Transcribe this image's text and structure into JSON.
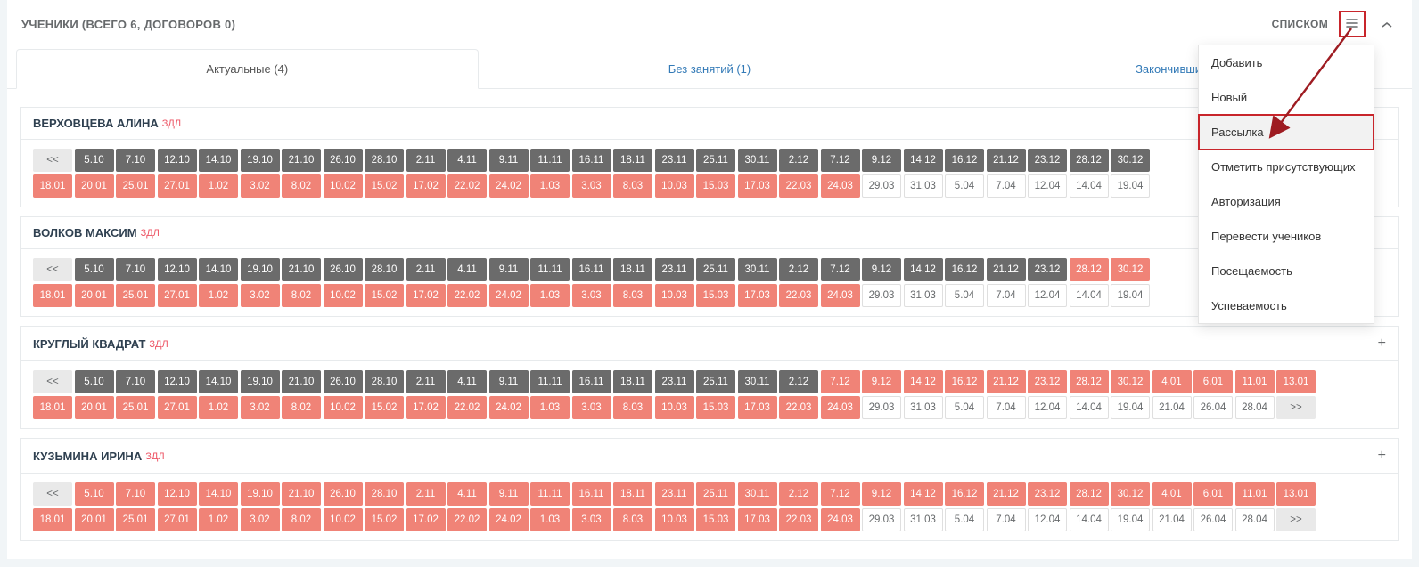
{
  "panel": {
    "title": "УЧЕНИКИ (ВСЕГО 6, ДОГОВОРОВ 0)",
    "list_label": "СПИСКОМ"
  },
  "tabs": [
    {
      "label": "Актуальные (4)",
      "active": true
    },
    {
      "label": "Без занятий (1)",
      "active": false
    },
    {
      "label": "Закончившие",
      "active": false
    }
  ],
  "students": [
    {
      "name": "ВЕРХОВЦЕВА АЛИНА",
      "badge": "ЗДЛ",
      "show_plus": false,
      "rows": [
        [
          {
            "t": "<<",
            "c": "nav"
          },
          {
            "t": "5.10",
            "c": "grey"
          },
          {
            "t": "7.10",
            "c": "grey"
          },
          {
            "t": "12.10",
            "c": "grey"
          },
          {
            "t": "14.10",
            "c": "grey"
          },
          {
            "t": "19.10",
            "c": "grey"
          },
          {
            "t": "21.10",
            "c": "grey"
          },
          {
            "t": "26.10",
            "c": "grey"
          },
          {
            "t": "28.10",
            "c": "grey"
          },
          {
            "t": "2.11",
            "c": "grey"
          },
          {
            "t": "4.11",
            "c": "grey"
          },
          {
            "t": "9.11",
            "c": "grey"
          },
          {
            "t": "11.11",
            "c": "grey"
          },
          {
            "t": "16.11",
            "c": "grey"
          },
          {
            "t": "18.11",
            "c": "grey"
          },
          {
            "t": "23.11",
            "c": "grey"
          },
          {
            "t": "25.11",
            "c": "grey"
          },
          {
            "t": "30.11",
            "c": "grey"
          },
          {
            "t": "2.12",
            "c": "grey"
          },
          {
            "t": "7.12",
            "c": "grey"
          },
          {
            "t": "9.12",
            "c": "grey"
          },
          {
            "t": "14.12",
            "c": "grey"
          },
          {
            "t": "16.12",
            "c": "grey"
          },
          {
            "t": "21.12",
            "c": "grey"
          },
          {
            "t": "23.12",
            "c": "grey"
          },
          {
            "t": "28.12",
            "c": "grey"
          },
          {
            "t": "30.12",
            "c": "grey"
          }
        ],
        [
          {
            "t": "18.01",
            "c": "coral"
          },
          {
            "t": "20.01",
            "c": "coral"
          },
          {
            "t": "25.01",
            "c": "coral"
          },
          {
            "t": "27.01",
            "c": "coral"
          },
          {
            "t": "1.02",
            "c": "coral"
          },
          {
            "t": "3.02",
            "c": "coral"
          },
          {
            "t": "8.02",
            "c": "coral"
          },
          {
            "t": "10.02",
            "c": "coral"
          },
          {
            "t": "15.02",
            "c": "coral"
          },
          {
            "t": "17.02",
            "c": "coral"
          },
          {
            "t": "22.02",
            "c": "coral"
          },
          {
            "t": "24.02",
            "c": "coral"
          },
          {
            "t": "1.03",
            "c": "coral"
          },
          {
            "t": "3.03",
            "c": "coral"
          },
          {
            "t": "8.03",
            "c": "coral"
          },
          {
            "t": "10.03",
            "c": "coral"
          },
          {
            "t": "15.03",
            "c": "coral"
          },
          {
            "t": "17.03",
            "c": "coral"
          },
          {
            "t": "22.03",
            "c": "coral"
          },
          {
            "t": "24.03",
            "c": "coral"
          },
          {
            "t": "29.03",
            "c": "light"
          },
          {
            "t": "31.03",
            "c": "light"
          },
          {
            "t": "5.04",
            "c": "light"
          },
          {
            "t": "7.04",
            "c": "light"
          },
          {
            "t": "12.04",
            "c": "light"
          },
          {
            "t": "14.04",
            "c": "light"
          },
          {
            "t": "19.04",
            "c": "light"
          }
        ]
      ]
    },
    {
      "name": "ВОЛКОВ МАКСИМ",
      "badge": "ЗДЛ",
      "show_plus": false,
      "rows": [
        [
          {
            "t": "<<",
            "c": "nav"
          },
          {
            "t": "5.10",
            "c": "grey"
          },
          {
            "t": "7.10",
            "c": "grey"
          },
          {
            "t": "12.10",
            "c": "grey"
          },
          {
            "t": "14.10",
            "c": "grey"
          },
          {
            "t": "19.10",
            "c": "grey"
          },
          {
            "t": "21.10",
            "c": "grey"
          },
          {
            "t": "26.10",
            "c": "grey"
          },
          {
            "t": "28.10",
            "c": "grey"
          },
          {
            "t": "2.11",
            "c": "grey"
          },
          {
            "t": "4.11",
            "c": "grey"
          },
          {
            "t": "9.11",
            "c": "grey"
          },
          {
            "t": "11.11",
            "c": "grey"
          },
          {
            "t": "16.11",
            "c": "grey"
          },
          {
            "t": "18.11",
            "c": "grey"
          },
          {
            "t": "23.11",
            "c": "grey"
          },
          {
            "t": "25.11",
            "c": "grey"
          },
          {
            "t": "30.11",
            "c": "grey"
          },
          {
            "t": "2.12",
            "c": "grey"
          },
          {
            "t": "7.12",
            "c": "grey"
          },
          {
            "t": "9.12",
            "c": "grey"
          },
          {
            "t": "14.12",
            "c": "grey"
          },
          {
            "t": "16.12",
            "c": "grey"
          },
          {
            "t": "21.12",
            "c": "grey"
          },
          {
            "t": "23.12",
            "c": "grey"
          },
          {
            "t": "28.12",
            "c": "coral"
          },
          {
            "t": "30.12",
            "c": "coral"
          }
        ],
        [
          {
            "t": "18.01",
            "c": "coral"
          },
          {
            "t": "20.01",
            "c": "coral"
          },
          {
            "t": "25.01",
            "c": "coral"
          },
          {
            "t": "27.01",
            "c": "coral"
          },
          {
            "t": "1.02",
            "c": "coral"
          },
          {
            "t": "3.02",
            "c": "coral"
          },
          {
            "t": "8.02",
            "c": "coral"
          },
          {
            "t": "10.02",
            "c": "coral"
          },
          {
            "t": "15.02",
            "c": "coral"
          },
          {
            "t": "17.02",
            "c": "coral"
          },
          {
            "t": "22.02",
            "c": "coral"
          },
          {
            "t": "24.02",
            "c": "coral"
          },
          {
            "t": "1.03",
            "c": "coral"
          },
          {
            "t": "3.03",
            "c": "coral"
          },
          {
            "t": "8.03",
            "c": "coral"
          },
          {
            "t": "10.03",
            "c": "coral"
          },
          {
            "t": "15.03",
            "c": "coral"
          },
          {
            "t": "17.03",
            "c": "coral"
          },
          {
            "t": "22.03",
            "c": "coral"
          },
          {
            "t": "24.03",
            "c": "coral"
          },
          {
            "t": "29.03",
            "c": "light"
          },
          {
            "t": "31.03",
            "c": "light"
          },
          {
            "t": "5.04",
            "c": "light"
          },
          {
            "t": "7.04",
            "c": "light"
          },
          {
            "t": "12.04",
            "c": "light"
          },
          {
            "t": "14.04",
            "c": "light"
          },
          {
            "t": "19.04",
            "c": "light"
          }
        ]
      ]
    },
    {
      "name": "КРУГЛЫЙ КВАДРАТ",
      "badge": "ЗДЛ",
      "show_plus": true,
      "rows": [
        [
          {
            "t": "<<",
            "c": "nav"
          },
          {
            "t": "5.10",
            "c": "grey"
          },
          {
            "t": "7.10",
            "c": "grey"
          },
          {
            "t": "12.10",
            "c": "grey"
          },
          {
            "t": "14.10",
            "c": "grey"
          },
          {
            "t": "19.10",
            "c": "grey"
          },
          {
            "t": "21.10",
            "c": "grey"
          },
          {
            "t": "26.10",
            "c": "grey"
          },
          {
            "t": "28.10",
            "c": "grey"
          },
          {
            "t": "2.11",
            "c": "grey"
          },
          {
            "t": "4.11",
            "c": "grey"
          },
          {
            "t": "9.11",
            "c": "grey"
          },
          {
            "t": "11.11",
            "c": "grey"
          },
          {
            "t": "16.11",
            "c": "grey"
          },
          {
            "t": "18.11",
            "c": "grey"
          },
          {
            "t": "23.11",
            "c": "grey"
          },
          {
            "t": "25.11",
            "c": "grey"
          },
          {
            "t": "30.11",
            "c": "grey"
          },
          {
            "t": "2.12",
            "c": "grey"
          },
          {
            "t": "7.12",
            "c": "coral"
          },
          {
            "t": "9.12",
            "c": "coral"
          },
          {
            "t": "14.12",
            "c": "coral"
          },
          {
            "t": "16.12",
            "c": "coral"
          },
          {
            "t": "21.12",
            "c": "coral"
          },
          {
            "t": "23.12",
            "c": "coral"
          },
          {
            "t": "28.12",
            "c": "coral"
          },
          {
            "t": "30.12",
            "c": "coral"
          },
          {
            "t": "4.01",
            "c": "coral"
          },
          {
            "t": "6.01",
            "c": "coral"
          },
          {
            "t": "11.01",
            "c": "coral"
          },
          {
            "t": "13.01",
            "c": "coral"
          }
        ],
        [
          {
            "t": "18.01",
            "c": "coral"
          },
          {
            "t": "20.01",
            "c": "coral"
          },
          {
            "t": "25.01",
            "c": "coral"
          },
          {
            "t": "27.01",
            "c": "coral"
          },
          {
            "t": "1.02",
            "c": "coral"
          },
          {
            "t": "3.02",
            "c": "coral"
          },
          {
            "t": "8.02",
            "c": "coral"
          },
          {
            "t": "10.02",
            "c": "coral"
          },
          {
            "t": "15.02",
            "c": "coral"
          },
          {
            "t": "17.02",
            "c": "coral"
          },
          {
            "t": "22.02",
            "c": "coral"
          },
          {
            "t": "24.02",
            "c": "coral"
          },
          {
            "t": "1.03",
            "c": "coral"
          },
          {
            "t": "3.03",
            "c": "coral"
          },
          {
            "t": "8.03",
            "c": "coral"
          },
          {
            "t": "10.03",
            "c": "coral"
          },
          {
            "t": "15.03",
            "c": "coral"
          },
          {
            "t": "17.03",
            "c": "coral"
          },
          {
            "t": "22.03",
            "c": "coral"
          },
          {
            "t": "24.03",
            "c": "coral"
          },
          {
            "t": "29.03",
            "c": "light"
          },
          {
            "t": "31.03",
            "c": "light"
          },
          {
            "t": "5.04",
            "c": "light"
          },
          {
            "t": "7.04",
            "c": "light"
          },
          {
            "t": "12.04",
            "c": "light"
          },
          {
            "t": "14.04",
            "c": "light"
          },
          {
            "t": "19.04",
            "c": "light"
          },
          {
            "t": "21.04",
            "c": "light"
          },
          {
            "t": "26.04",
            "c": "light"
          },
          {
            "t": "28.04",
            "c": "light"
          },
          {
            "t": ">>",
            "c": "nav"
          }
        ]
      ]
    },
    {
      "name": "КУЗЬМИНА ИРИНА",
      "badge": "ЗДЛ",
      "show_plus": true,
      "rows": [
        [
          {
            "t": "<<",
            "c": "nav"
          },
          {
            "t": "5.10",
            "c": "coral"
          },
          {
            "t": "7.10",
            "c": "coral"
          },
          {
            "t": "12.10",
            "c": "coral"
          },
          {
            "t": "14.10",
            "c": "coral"
          },
          {
            "t": "19.10",
            "c": "coral"
          },
          {
            "t": "21.10",
            "c": "coral"
          },
          {
            "t": "26.10",
            "c": "coral"
          },
          {
            "t": "28.10",
            "c": "coral"
          },
          {
            "t": "2.11",
            "c": "coral"
          },
          {
            "t": "4.11",
            "c": "coral"
          },
          {
            "t": "9.11",
            "c": "coral"
          },
          {
            "t": "11.11",
            "c": "coral"
          },
          {
            "t": "16.11",
            "c": "coral"
          },
          {
            "t": "18.11",
            "c": "coral"
          },
          {
            "t": "23.11",
            "c": "coral"
          },
          {
            "t": "25.11",
            "c": "coral"
          },
          {
            "t": "30.11",
            "c": "coral"
          },
          {
            "t": "2.12",
            "c": "coral"
          },
          {
            "t": "7.12",
            "c": "coral"
          },
          {
            "t": "9.12",
            "c": "coral"
          },
          {
            "t": "14.12",
            "c": "coral"
          },
          {
            "t": "16.12",
            "c": "coral"
          },
          {
            "t": "21.12",
            "c": "coral"
          },
          {
            "t": "23.12",
            "c": "coral"
          },
          {
            "t": "28.12",
            "c": "coral"
          },
          {
            "t": "30.12",
            "c": "coral"
          },
          {
            "t": "4.01",
            "c": "coral"
          },
          {
            "t": "6.01",
            "c": "coral"
          },
          {
            "t": "11.01",
            "c": "coral"
          },
          {
            "t": "13.01",
            "c": "coral"
          }
        ],
        [
          {
            "t": "18.01",
            "c": "coral"
          },
          {
            "t": "20.01",
            "c": "coral"
          },
          {
            "t": "25.01",
            "c": "coral"
          },
          {
            "t": "27.01",
            "c": "coral"
          },
          {
            "t": "1.02",
            "c": "coral"
          },
          {
            "t": "3.02",
            "c": "coral"
          },
          {
            "t": "8.02",
            "c": "coral"
          },
          {
            "t": "10.02",
            "c": "coral"
          },
          {
            "t": "15.02",
            "c": "coral"
          },
          {
            "t": "17.02",
            "c": "coral"
          },
          {
            "t": "22.02",
            "c": "coral"
          },
          {
            "t": "24.02",
            "c": "coral"
          },
          {
            "t": "1.03",
            "c": "coral"
          },
          {
            "t": "3.03",
            "c": "coral"
          },
          {
            "t": "8.03",
            "c": "coral"
          },
          {
            "t": "10.03",
            "c": "coral"
          },
          {
            "t": "15.03",
            "c": "coral"
          },
          {
            "t": "17.03",
            "c": "coral"
          },
          {
            "t": "22.03",
            "c": "coral"
          },
          {
            "t": "24.03",
            "c": "coral"
          },
          {
            "t": "29.03",
            "c": "light"
          },
          {
            "t": "31.03",
            "c": "light"
          },
          {
            "t": "5.04",
            "c": "light"
          },
          {
            "t": "7.04",
            "c": "light"
          },
          {
            "t": "12.04",
            "c": "light"
          },
          {
            "t": "14.04",
            "c": "light"
          },
          {
            "t": "19.04",
            "c": "light"
          },
          {
            "t": "21.04",
            "c": "light"
          },
          {
            "t": "26.04",
            "c": "light"
          },
          {
            "t": "28.04",
            "c": "light"
          },
          {
            "t": ">>",
            "c": "nav"
          }
        ]
      ]
    }
  ],
  "menu": [
    {
      "label": "Добавить",
      "highlight": false
    },
    {
      "label": "Новый",
      "highlight": false
    },
    {
      "label": "Рассылка",
      "highlight": true
    },
    {
      "label": "Отметить присутствующих",
      "highlight": false
    },
    {
      "label": "Авторизация",
      "highlight": false
    },
    {
      "label": "Перевести учеников",
      "highlight": false
    },
    {
      "label": "Посещаемость",
      "highlight": false
    },
    {
      "label": "Успеваемость",
      "highlight": false
    }
  ],
  "colors": {
    "grey_cell": "#6b6b6b",
    "coral_cell": "#f08377",
    "nav_cell": "#e9e9e9",
    "highlight_border": "#c8252b"
  }
}
